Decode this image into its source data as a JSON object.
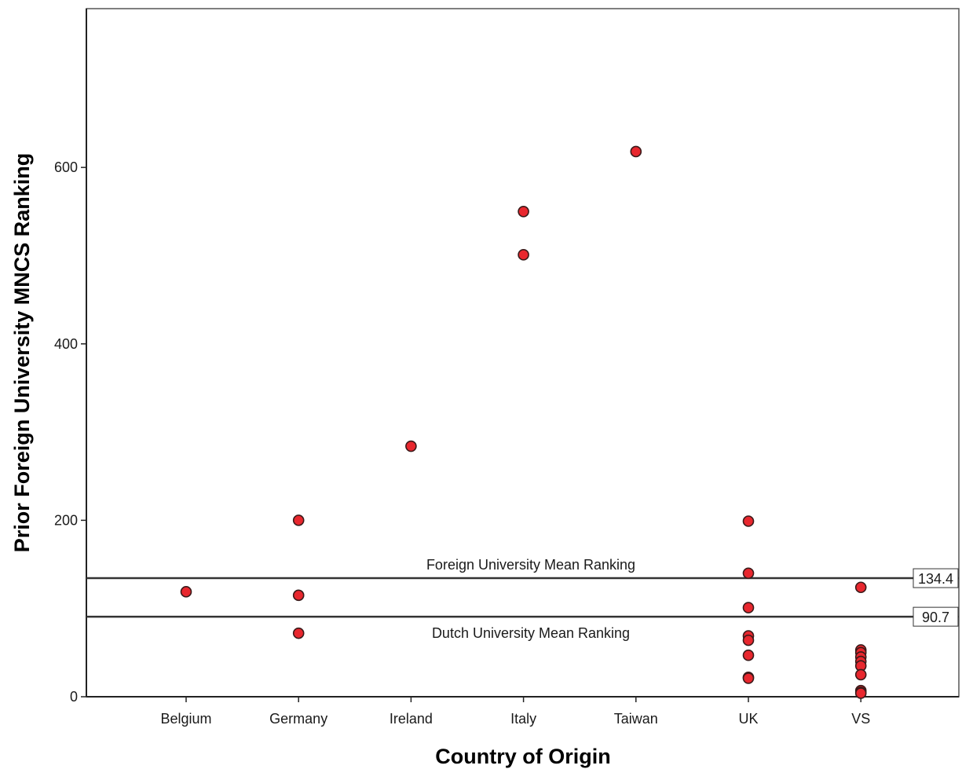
{
  "chart_data": {
    "type": "scatter",
    "xlabel": "Country of Origin",
    "ylabel": "Prior Foreign University MNCS Ranking",
    "categories": [
      "Belgium",
      "Germany",
      "Ireland",
      "Italy",
      "Taiwan",
      "UK",
      "VS"
    ],
    "ylim": [
      0,
      780
    ],
    "yticks": [
      0,
      200,
      400,
      600
    ],
    "grid": false,
    "points": [
      {
        "x": "Belgium",
        "y": 119
      },
      {
        "x": "Germany",
        "y": 200
      },
      {
        "x": "Germany",
        "y": 115
      },
      {
        "x": "Germany",
        "y": 72
      },
      {
        "x": "Ireland",
        "y": 284
      },
      {
        "x": "Italy",
        "y": 550
      },
      {
        "x": "Italy",
        "y": 501
      },
      {
        "x": "Taiwan",
        "y": 618
      },
      {
        "x": "UK",
        "y": 199
      },
      {
        "x": "UK",
        "y": 140
      },
      {
        "x": "UK",
        "y": 101
      },
      {
        "x": "UK",
        "y": 69
      },
      {
        "x": "UK",
        "y": 64
      },
      {
        "x": "UK",
        "y": 47
      },
      {
        "x": "UK",
        "y": 22
      },
      {
        "x": "UK",
        "y": 21
      },
      {
        "x": "VS",
        "y": 124
      },
      {
        "x": "VS",
        "y": 53
      },
      {
        "x": "VS",
        "y": 50
      },
      {
        "x": "VS",
        "y": 45
      },
      {
        "x": "VS",
        "y": 40
      },
      {
        "x": "VS",
        "y": 35
      },
      {
        "x": "VS",
        "y": 25
      },
      {
        "x": "VS",
        "y": 7
      },
      {
        "x": "VS",
        "y": 5
      },
      {
        "x": "VS",
        "y": 4
      }
    ],
    "reference_lines": [
      {
        "label": "Foreign University Mean Ranking",
        "value": 134.4,
        "value_label": "134.4",
        "label_position": "above"
      },
      {
        "label": "Dutch University Mean Ranking",
        "value": 90.7,
        "value_label": "90.7",
        "label_position": "below"
      }
    ],
    "marker_color": "#e8272e",
    "marker_edge_color": "#3a1a1a",
    "line_color": "#333333"
  }
}
